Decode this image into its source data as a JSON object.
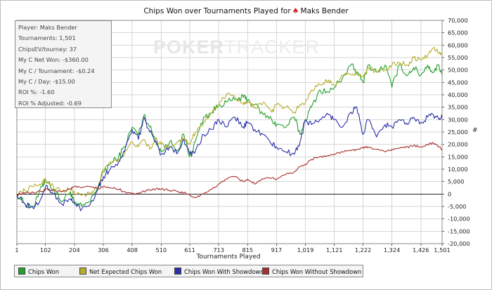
{
  "chart_data": {
    "type": "line",
    "title": {
      "before": "Chips Won over Tournaments Played for",
      "after": "Maks Bender"
    },
    "title_suit_icon": "poker-chip-suit-icon",
    "xlabel": "Tournaments Played",
    "ylabel": "#",
    "xticks": [
      "1",
      "102",
      "204",
      "306",
      "408",
      "510",
      "611",
      "713",
      "815",
      "917",
      "1,019",
      "1,121",
      "1,222",
      "1,324",
      "1,426",
      "1,501"
    ],
    "xlim": [
      1,
      1501
    ],
    "yticks": [
      "-20,000",
      "-15,000",
      "-10,000",
      "-5,000",
      "0",
      "5,000",
      "10,000",
      "15,000",
      "20,000",
      "25,000",
      "30,000",
      "35,000",
      "40,000",
      "45,000",
      "50,000",
      "55,000",
      "60,000",
      "65,000",
      "70,000"
    ],
    "ylim": [
      -20000,
      70000
    ],
    "grid": true,
    "legend_position": "bottom",
    "series": [
      {
        "name": "Chips Won",
        "color": "#22a02a",
        "x": [
          1,
          30,
          60,
          90,
          102,
          130,
          160,
          190,
          204,
          230,
          260,
          290,
          306,
          330,
          360,
          380,
          408,
          430,
          450,
          470,
          490,
          510,
          540,
          570,
          590,
          611,
          630,
          660,
          690,
          713,
          740,
          770,
          800,
          815,
          840,
          870,
          900,
          917,
          950,
          980,
          1000,
          1019,
          1040,
          1070,
          1100,
          1121,
          1150,
          1180,
          1200,
          1222,
          1240,
          1270,
          1300,
          1324,
          1350,
          1380,
          1400,
          1426,
          1450,
          1470,
          1490,
          1501
        ],
        "values": [
          0,
          -4000,
          -5000,
          3000,
          6000,
          2000,
          -3000,
          1000,
          -4000,
          -5000,
          -3000,
          4000,
          9000,
          12000,
          15000,
          19000,
          27000,
          24000,
          32000,
          27000,
          22000,
          17000,
          21000,
          18000,
          24000,
          15000,
          21000,
          31000,
          33000,
          36000,
          37000,
          38000,
          39000,
          38000,
          36000,
          32000,
          30000,
          28000,
          27000,
          31000,
          24000,
          30000,
          35000,
          42000,
          41000,
          43000,
          47000,
          52000,
          49000,
          45000,
          52000,
          49000,
          52000,
          43000,
          52000,
          48000,
          51000,
          48000,
          52000,
          49000,
          52000,
          48000
        ]
      },
      {
        "name": "Net Expected Chips Won",
        "color": "#b5ad2c",
        "x": [
          1,
          30,
          60,
          90,
          102,
          130,
          160,
          190,
          204,
          230,
          260,
          290,
          306,
          330,
          360,
          380,
          408,
          430,
          450,
          470,
          490,
          510,
          540,
          570,
          590,
          611,
          630,
          660,
          690,
          713,
          740,
          770,
          800,
          815,
          840,
          870,
          900,
          917,
          950,
          980,
          1000,
          1019,
          1040,
          1070,
          1100,
          1121,
          1150,
          1180,
          1200,
          1222,
          1240,
          1270,
          1300,
          1324,
          1350,
          1380,
          1400,
          1426,
          1450,
          1470,
          1490,
          1501
        ],
        "values": [
          0,
          1500,
          3000,
          4500,
          6000,
          3000,
          1000,
          2000,
          500,
          -500,
          0,
          3000,
          10000,
          13000,
          14000,
          16000,
          21000,
          19000,
          22000,
          18000,
          22000,
          20000,
          19000,
          21000,
          23000,
          20000,
          25000,
          29000,
          33000,
          36000,
          40000,
          39000,
          36000,
          37000,
          35000,
          37000,
          33000,
          36000,
          35000,
          33000,
          36000,
          37000,
          42000,
          44000,
          46000,
          44000,
          48000,
          48000,
          49000,
          47000,
          51000,
          49000,
          50000,
          52000,
          53000,
          52000,
          55000,
          54000,
          56000,
          59000,
          57000,
          56000
        ]
      },
      {
        "name": "Chips Won With Showdown",
        "color": "#2a2ea8",
        "x": [
          1,
          30,
          60,
          90,
          102,
          130,
          160,
          190,
          204,
          230,
          260,
          290,
          306,
          330,
          360,
          380,
          408,
          430,
          450,
          470,
          490,
          510,
          540,
          570,
          590,
          611,
          630,
          660,
          690,
          713,
          740,
          770,
          800,
          815,
          840,
          870,
          900,
          917,
          950,
          980,
          1000,
          1019,
          1040,
          1070,
          1100,
          1121,
          1150,
          1180,
          1200,
          1222,
          1240,
          1270,
          1300,
          1324,
          1350,
          1380,
          1400,
          1426,
          1450,
          1470,
          1490,
          1501
        ],
        "values": [
          0,
          -4000,
          -6000,
          -1000,
          3000,
          0,
          -4000,
          -2000,
          -4000,
          -6000,
          -4000,
          3000,
          7000,
          10000,
          13000,
          17000,
          26000,
          22000,
          31000,
          25000,
          21000,
          16000,
          19000,
          17000,
          22000,
          16000,
          17000,
          24000,
          26000,
          30000,
          27000,
          31000,
          27000,
          29000,
          26000,
          24000,
          20000,
          19000,
          17000,
          16000,
          21000,
          30000,
          28000,
          30000,
          32000,
          30000,
          27000,
          33000,
          35000,
          24000,
          30000,
          23000,
          28000,
          27000,
          30000,
          28000,
          31000,
          29000,
          31000,
          32000,
          30000,
          31000
        ]
      },
      {
        "name": "Chips Won Without Showdown",
        "color": "#a8302e",
        "x": [
          1,
          30,
          60,
          90,
          102,
          130,
          160,
          190,
          204,
          230,
          260,
          290,
          306,
          330,
          360,
          380,
          408,
          430,
          450,
          470,
          490,
          510,
          540,
          570,
          590,
          611,
          630,
          660,
          690,
          713,
          740,
          770,
          800,
          815,
          840,
          870,
          900,
          917,
          950,
          980,
          1000,
          1019,
          1040,
          1070,
          1100,
          1121,
          1150,
          1180,
          1200,
          1222,
          1240,
          1270,
          1300,
          1324,
          1350,
          1380,
          1400,
          1426,
          1450,
          1470,
          1490,
          1501
        ],
        "values": [
          0,
          300,
          500,
          1000,
          2000,
          1500,
          1000,
          2000,
          3000,
          2500,
          3000,
          2000,
          3000,
          2500,
          2000,
          1000,
          0,
          500,
          1000,
          1500,
          2000,
          2000,
          1500,
          1000,
          500,
          -500,
          -1500,
          0,
          2000,
          4000,
          6000,
          7000,
          5000,
          6000,
          4000,
          6000,
          6500,
          6000,
          8000,
          9000,
          11000,
          12000,
          14000,
          15000,
          15500,
          16000,
          17000,
          17500,
          18000,
          18500,
          19000,
          18000,
          17000,
          18000,
          18500,
          19000,
          19500,
          19000,
          20000,
          20500,
          19000,
          18000
        ]
      }
    ]
  },
  "stats_box": [
    "Player: Maks Bender",
    "Tournaments: 1,501",
    "ChipsEV/tourney: 37",
    "My C Net Won: -$360.00",
    "My C / Tournament: -$0.24",
    "My C / Day: -$15.00",
    "ROI %: -1.60",
    "ROI % Adjusted: -0.69"
  ],
  "watermark": {
    "part1": "POKER",
    "part2": "TRACKER"
  }
}
